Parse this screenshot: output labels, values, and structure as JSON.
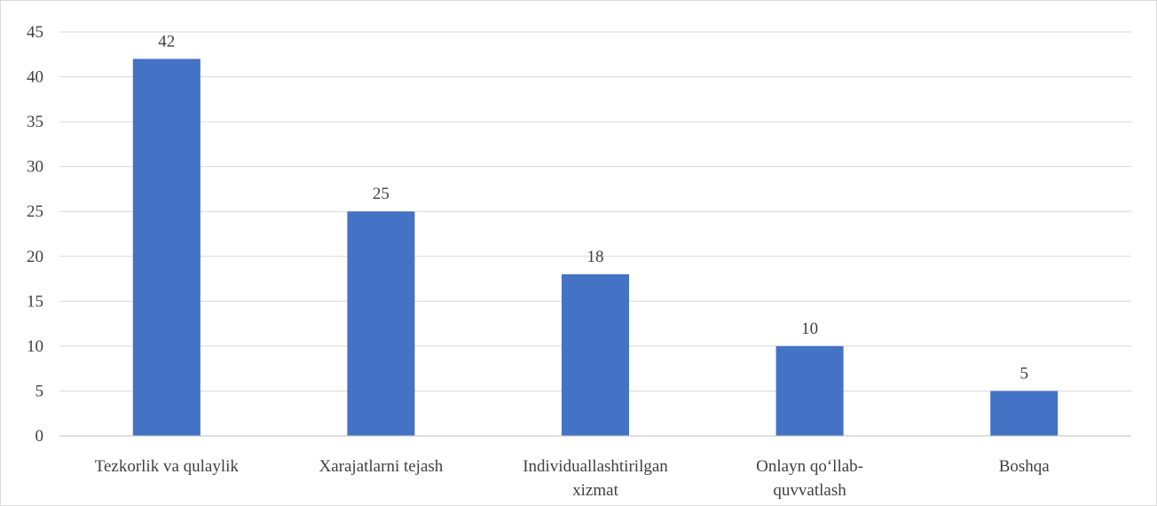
{
  "chart_data": {
    "type": "bar",
    "title": "",
    "xlabel": "",
    "ylabel": "",
    "categories": [
      [
        "Tezkorlik va qulaylik"
      ],
      [
        "Xarajatlarni tejash"
      ],
      [
        "Individuallashtirilgan",
        "xizmat"
      ],
      [
        "Onlayn qo‘llab-",
        "quvvatlash"
      ],
      [
        "Boshqa"
      ]
    ],
    "values": [
      42,
      25,
      18,
      10,
      5
    ],
    "data_labels": [
      "42",
      "25",
      "18",
      "10",
      "5"
    ],
    "ylim": [
      0,
      45
    ],
    "yticks": [
      0,
      5,
      10,
      15,
      20,
      25,
      30,
      35,
      40,
      45
    ],
    "ytick_labels": [
      "0",
      "5",
      "10",
      "15",
      "20",
      "25",
      "30",
      "35",
      "40",
      "45"
    ],
    "grid": true,
    "legend": "none",
    "colors": {
      "bar": "#4472c4",
      "grid": "#d9d9d9",
      "axis": "#bfbfbf",
      "text": "#404040"
    }
  }
}
